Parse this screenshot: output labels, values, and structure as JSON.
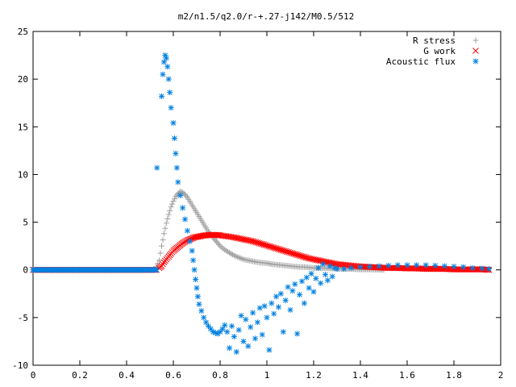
{
  "chart_data": {
    "type": "scatter",
    "title": "m2/n1.5/q2.0/r-+.27-j142/M0.5/512",
    "xlabel": "",
    "ylabel": "",
    "xlim": [
      0,
      2
    ],
    "ylim": [
      -10,
      25
    ],
    "x_ticks": [
      0,
      0.2,
      0.4,
      0.6,
      0.8,
      1,
      1.2,
      1.4,
      1.6,
      1.8,
      2
    ],
    "x_tick_labels": [
      "0",
      "0.2",
      "0.4",
      "0.6",
      "0.8",
      "1",
      "1.2",
      "1.4",
      "1.6",
      "1.8",
      "2"
    ],
    "y_ticks": [
      -10,
      -5,
      0,
      5,
      10,
      15,
      20,
      25
    ],
    "y_tick_labels": [
      "-10",
      "-5",
      "0",
      "5",
      "10",
      "15",
      "20",
      "25"
    ],
    "grid": false,
    "legend": "top-right",
    "series": [
      {
        "name": "R stress",
        "marker": "plus",
        "color": "#a0a0a0",
        "points": [
          [
            0.52,
            0.0
          ],
          [
            0.54,
            1.0
          ],
          [
            0.55,
            2.5
          ],
          [
            0.56,
            3.8
          ],
          [
            0.57,
            4.9
          ],
          [
            0.58,
            5.8
          ],
          [
            0.59,
            6.6
          ],
          [
            0.6,
            7.2
          ],
          [
            0.61,
            7.7
          ],
          [
            0.62,
            8.0
          ],
          [
            0.63,
            8.2
          ],
          [
            0.64,
            8.1
          ],
          [
            0.65,
            7.9
          ],
          [
            0.66,
            7.6
          ],
          [
            0.67,
            7.2
          ],
          [
            0.68,
            6.8
          ],
          [
            0.69,
            6.4
          ],
          [
            0.7,
            6.0
          ],
          [
            0.71,
            5.6
          ],
          [
            0.72,
            5.2
          ],
          [
            0.73,
            4.8
          ],
          [
            0.74,
            4.4
          ],
          [
            0.75,
            4.0
          ],
          [
            0.76,
            3.7
          ],
          [
            0.77,
            3.4
          ],
          [
            0.78,
            3.1
          ],
          [
            0.79,
            2.8
          ],
          [
            0.8,
            2.5
          ],
          [
            0.82,
            2.1
          ],
          [
            0.84,
            1.8
          ],
          [
            0.86,
            1.5
          ],
          [
            0.88,
            1.3
          ],
          [
            0.9,
            1.1
          ],
          [
            0.92,
            1.0
          ],
          [
            0.94,
            0.9
          ],
          [
            0.96,
            0.8
          ],
          [
            0.98,
            0.75
          ],
          [
            1.0,
            0.7
          ],
          [
            1.02,
            0.6
          ],
          [
            1.04,
            0.55
          ],
          [
            1.06,
            0.5
          ],
          [
            1.08,
            0.45
          ],
          [
            1.1,
            0.4
          ],
          [
            1.12,
            0.35
          ],
          [
            1.14,
            0.3
          ],
          [
            1.16,
            0.3
          ],
          [
            1.18,
            0.25
          ],
          [
            1.2,
            0.2
          ],
          [
            1.24,
            0.2
          ],
          [
            1.28,
            0.15
          ],
          [
            1.32,
            0.1
          ],
          [
            1.36,
            0.1
          ],
          [
            1.4,
            0.05
          ],
          [
            1.44,
            0.05
          ],
          [
            1.5,
            0.0
          ]
        ]
      },
      {
        "name": "G work",
        "marker": "cross",
        "color": "#ff0000",
        "points": [
          [
            0.54,
            0.2
          ],
          [
            0.55,
            0.4
          ],
          [
            0.56,
            0.8
          ],
          [
            0.57,
            1.1
          ],
          [
            0.58,
            1.4
          ],
          [
            0.59,
            1.7
          ],
          [
            0.6,
            2.0
          ],
          [
            0.61,
            2.2
          ],
          [
            0.62,
            2.4
          ],
          [
            0.63,
            2.6
          ],
          [
            0.64,
            2.8
          ],
          [
            0.65,
            2.95
          ],
          [
            0.66,
            3.1
          ],
          [
            0.67,
            3.2
          ],
          [
            0.68,
            3.3
          ],
          [
            0.69,
            3.4
          ],
          [
            0.7,
            3.45
          ],
          [
            0.71,
            3.5
          ],
          [
            0.72,
            3.55
          ],
          [
            0.73,
            3.6
          ],
          [
            0.74,
            3.62
          ],
          [
            0.75,
            3.65
          ],
          [
            0.76,
            3.66
          ],
          [
            0.77,
            3.67
          ],
          [
            0.78,
            3.66
          ],
          [
            0.79,
            3.65
          ],
          [
            0.8,
            3.62
          ],
          [
            0.82,
            3.55
          ],
          [
            0.84,
            3.48
          ],
          [
            0.86,
            3.4
          ],
          [
            0.88,
            3.3
          ],
          [
            0.9,
            3.2
          ],
          [
            0.92,
            3.1
          ],
          [
            0.94,
            3.0
          ],
          [
            0.96,
            2.85
          ],
          [
            0.98,
            2.7
          ],
          [
            1.0,
            2.55
          ],
          [
            1.02,
            2.4
          ],
          [
            1.04,
            2.25
          ],
          [
            1.06,
            2.1
          ],
          [
            1.08,
            1.95
          ],
          [
            1.1,
            1.8
          ],
          [
            1.12,
            1.65
          ],
          [
            1.14,
            1.5
          ],
          [
            1.16,
            1.35
          ],
          [
            1.18,
            1.2
          ],
          [
            1.2,
            1.1
          ],
          [
            1.22,
            1.0
          ],
          [
            1.24,
            0.9
          ],
          [
            1.26,
            0.8
          ],
          [
            1.28,
            0.7
          ],
          [
            1.3,
            0.6
          ],
          [
            1.32,
            0.55
          ],
          [
            1.34,
            0.5
          ],
          [
            1.36,
            0.45
          ],
          [
            1.38,
            0.4
          ],
          [
            1.4,
            0.35
          ],
          [
            1.44,
            0.3
          ],
          [
            1.48,
            0.25
          ],
          [
            1.52,
            0.2
          ],
          [
            1.56,
            0.2
          ],
          [
            1.6,
            0.15
          ],
          [
            1.64,
            0.15
          ],
          [
            1.68,
            0.1
          ],
          [
            1.72,
            0.1
          ],
          [
            1.76,
            0.1
          ],
          [
            1.8,
            0.05
          ],
          [
            1.84,
            0.05
          ],
          [
            1.88,
            0.05
          ],
          [
            1.92,
            0.05
          ],
          [
            1.95,
            0.0
          ]
        ]
      },
      {
        "name": "Acoustic flux",
        "marker": "star",
        "color": "#0080e0",
        "points": [
          [
            0.53,
            10.7
          ],
          [
            0.55,
            18.2
          ],
          [
            0.555,
            20.5
          ],
          [
            0.56,
            21.8
          ],
          [
            0.565,
            22.5
          ],
          [
            0.57,
            22.2
          ],
          [
            0.575,
            21.3
          ],
          [
            0.58,
            20.0
          ],
          [
            0.585,
            18.6
          ],
          [
            0.59,
            17.0
          ],
          [
            0.6,
            15.4
          ],
          [
            0.605,
            13.8
          ],
          [
            0.61,
            12.2
          ],
          [
            0.615,
            10.7
          ],
          [
            0.62,
            9.2
          ],
          [
            0.63,
            7.8
          ],
          [
            0.64,
            6.5
          ],
          [
            0.65,
            5.3
          ],
          [
            0.66,
            4.1
          ],
          [
            0.67,
            3.0
          ],
          [
            0.68,
            2.0
          ],
          [
            0.685,
            1.0
          ],
          [
            0.69,
            0.0
          ],
          [
            0.695,
            -1.0
          ],
          [
            0.7,
            -1.9
          ],
          [
            0.705,
            -2.8
          ],
          [
            0.71,
            -3.6
          ],
          [
            0.72,
            -4.3
          ],
          [
            0.73,
            -5.0
          ],
          [
            0.74,
            -5.5
          ],
          [
            0.75,
            -5.9
          ],
          [
            0.76,
            -6.2
          ],
          [
            0.77,
            -6.5
          ],
          [
            0.78,
            -6.6
          ],
          [
            0.79,
            -6.7
          ],
          [
            0.8,
            -6.5
          ],
          [
            0.81,
            -6.2
          ],
          [
            0.82,
            -5.8
          ],
          [
            0.83,
            -6.5
          ],
          [
            0.84,
            -8.2
          ],
          [
            0.85,
            -5.9
          ],
          [
            0.86,
            -7.0
          ],
          [
            0.87,
            -8.6
          ],
          [
            0.88,
            -6.3
          ],
          [
            0.89,
            -4.8
          ],
          [
            0.9,
            -7.5
          ],
          [
            0.91,
            -5.2
          ],
          [
            0.92,
            -8.0
          ],
          [
            0.93,
            -6.0
          ],
          [
            0.94,
            -4.5
          ],
          [
            0.95,
            -7.2
          ],
          [
            0.96,
            -5.5
          ],
          [
            0.97,
            -4.0
          ],
          [
            0.98,
            -6.8
          ],
          [
            0.99,
            -3.8
          ],
          [
            1.0,
            -5.0
          ],
          [
            1.01,
            -8.4
          ],
          [
            1.02,
            -3.5
          ],
          [
            1.03,
            -4.6
          ],
          [
            1.04,
            -2.8
          ],
          [
            1.05,
            -3.9
          ],
          [
            1.06,
            -2.5
          ],
          [
            1.07,
            -6.5
          ],
          [
            1.08,
            -3.2
          ],
          [
            1.09,
            -1.8
          ],
          [
            1.1,
            -4.2
          ],
          [
            1.11,
            -2.2
          ],
          [
            1.12,
            -1.5
          ],
          [
            1.13,
            -6.7
          ],
          [
            1.14,
            -2.6
          ],
          [
            1.15,
            -1.2
          ],
          [
            1.16,
            -3.5
          ],
          [
            1.17,
            -0.8
          ],
          [
            1.18,
            -1.9
          ],
          [
            1.19,
            -0.4
          ],
          [
            1.2,
            -2.3
          ],
          [
            1.21,
            -0.9
          ],
          [
            1.22,
            0.2
          ],
          [
            1.23,
            -1.4
          ],
          [
            1.24,
            0.6
          ],
          [
            1.25,
            -0.5
          ],
          [
            1.26,
            -1.1
          ],
          [
            1.27,
            0.4
          ],
          [
            1.28,
            -0.7
          ],
          [
            1.29,
            0.2
          ],
          [
            1.3,
            0.1
          ],
          [
            1.33,
            0.1
          ],
          [
            1.36,
            0.2
          ],
          [
            1.4,
            0.3
          ],
          [
            1.44,
            0.35
          ],
          [
            1.48,
            0.4
          ],
          [
            1.52,
            0.45
          ],
          [
            1.56,
            0.5
          ],
          [
            1.6,
            0.5
          ],
          [
            1.64,
            0.5
          ],
          [
            1.68,
            0.5
          ],
          [
            1.72,
            0.45
          ],
          [
            1.76,
            0.4
          ],
          [
            1.8,
            0.35
          ],
          [
            1.84,
            0.3
          ],
          [
            1.88,
            0.2
          ],
          [
            1.92,
            0.15
          ],
          [
            1.95,
            0.1
          ]
        ]
      }
    ]
  }
}
